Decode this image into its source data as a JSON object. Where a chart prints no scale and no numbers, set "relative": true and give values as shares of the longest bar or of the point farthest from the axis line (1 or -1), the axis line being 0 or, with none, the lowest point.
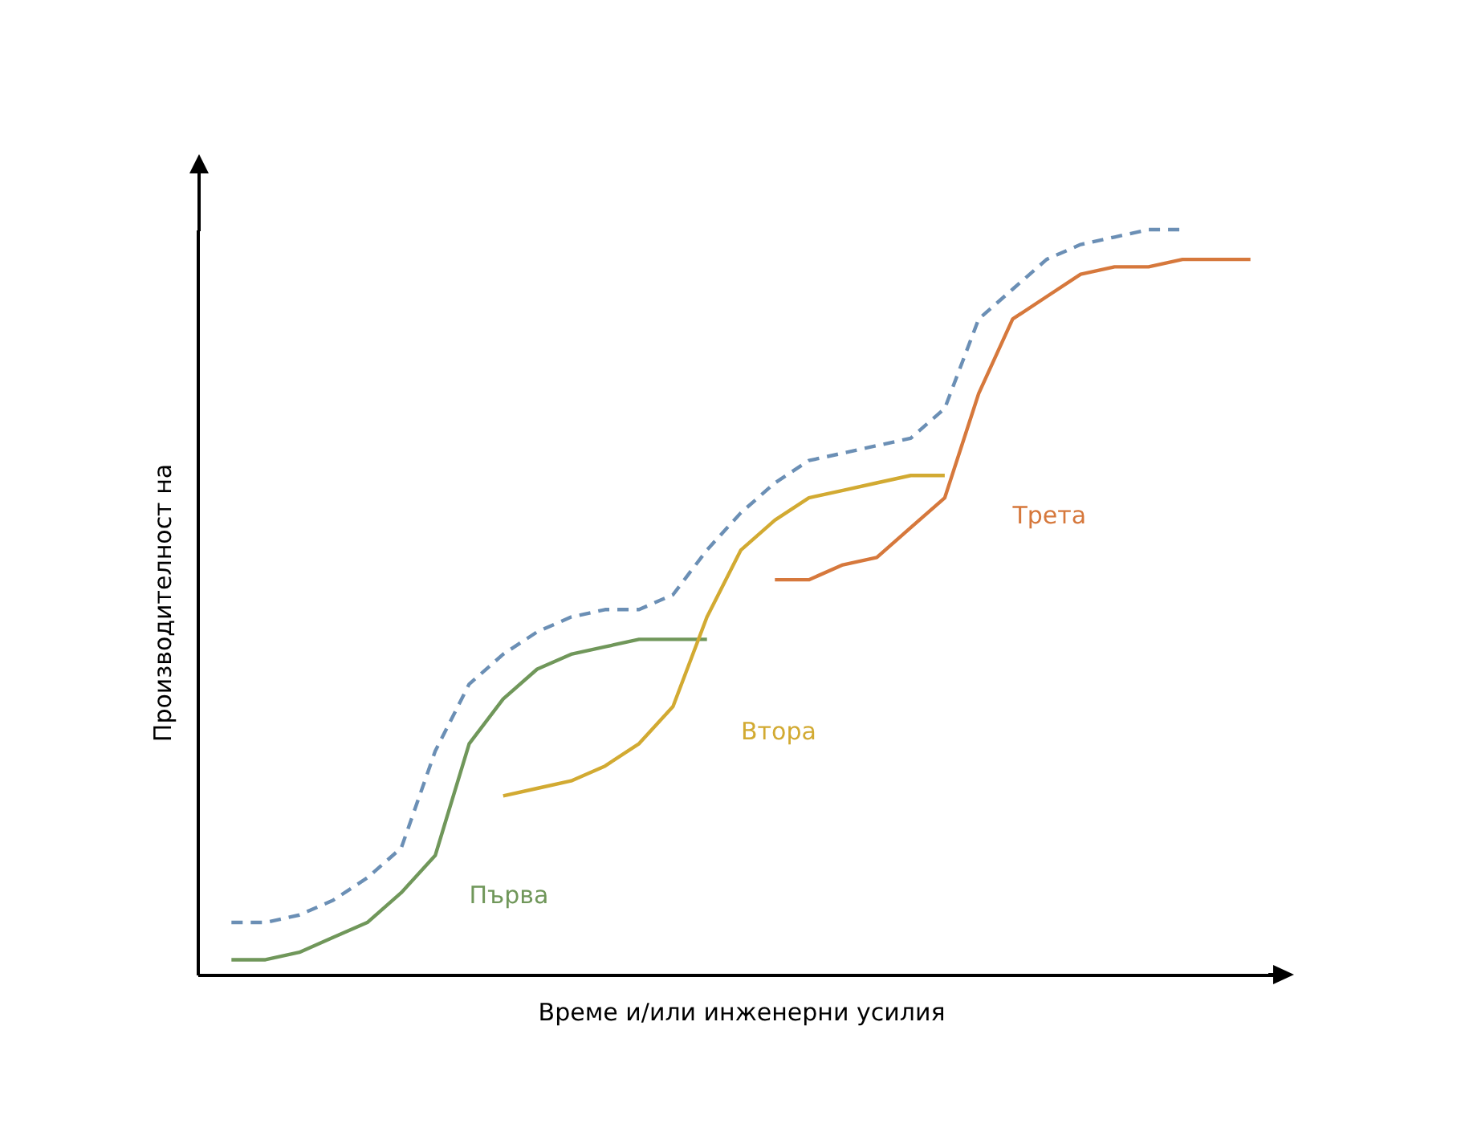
{
  "chart_data": {
    "type": "line",
    "relative": true,
    "xlabel": "Време и/или инженерни усилия",
    "ylabel": "Производителност на",
    "categories": [
      null,
      null,
      null,
      null,
      null,
      null,
      null,
      null,
      null,
      null,
      null,
      null,
      null,
      null,
      null,
      null,
      null,
      null,
      null,
      null,
      null,
      null,
      null,
      null,
      null,
      null,
      null,
      null,
      null,
      null,
      null
    ],
    "series": [
      {
        "color": "#6b8fb5",
        "line_style": "dashed",
        "values": [
          0.07,
          0.07,
          0.08,
          0.1,
          0.13,
          0.17,
          0.3,
          0.39,
          0.43,
          0.46,
          0.48,
          0.49,
          0.49,
          0.51,
          0.57,
          0.62,
          0.66,
          0.69,
          0.7,
          0.71,
          0.72,
          0.76,
          0.88,
          0.92,
          0.96,
          0.98,
          0.99,
          1.0,
          1.0,
          null,
          null
        ]
      },
      {
        "name": "Първа",
        "color": "#70975a",
        "line_style": "solid",
        "values": [
          0.02,
          0.02,
          0.03,
          0.05,
          0.07,
          0.11,
          0.16,
          0.31,
          0.37,
          0.41,
          0.43,
          0.44,
          0.45,
          0.45,
          0.45,
          null,
          null,
          null,
          null,
          null,
          null,
          null,
          null,
          null,
          null,
          null,
          null,
          null,
          null,
          null,
          null
        ]
      },
      {
        "name": "Втора",
        "color": "#d2aa32",
        "line_style": "solid",
        "values": [
          null,
          null,
          null,
          null,
          null,
          null,
          null,
          null,
          0.24,
          0.25,
          0.26,
          0.28,
          0.31,
          0.36,
          0.48,
          0.57,
          0.61,
          0.64,
          0.65,
          0.66,
          0.67,
          0.67,
          null,
          null,
          null,
          null,
          null,
          null,
          null,
          null,
          null
        ]
      },
      {
        "name": "Трета",
        "color": "#d6783c",
        "line_style": "solid",
        "values": [
          null,
          null,
          null,
          null,
          null,
          null,
          null,
          null,
          null,
          null,
          null,
          null,
          null,
          null,
          null,
          null,
          0.53,
          0.53,
          0.55,
          0.56,
          0.6,
          0.64,
          0.78,
          0.88,
          0.91,
          0.94,
          0.95,
          0.95,
          0.96,
          0.96,
          0.96
        ]
      }
    ]
  }
}
